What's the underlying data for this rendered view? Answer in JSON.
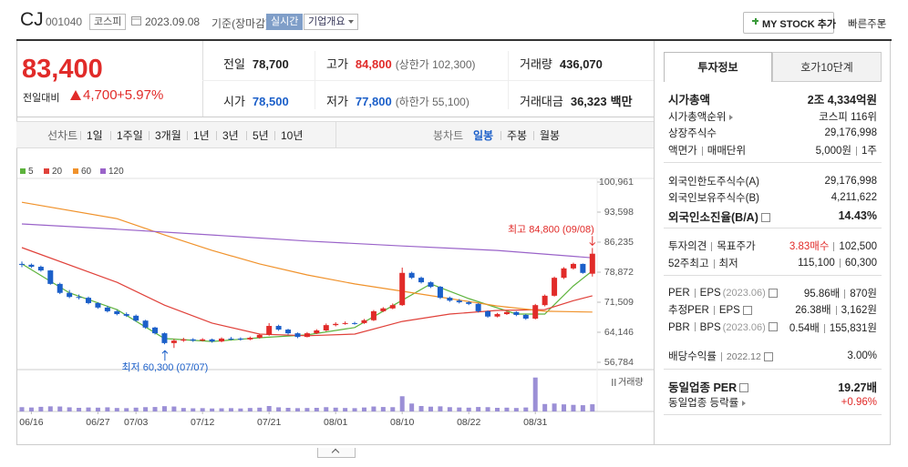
{
  "header": {
    "name": "CJ",
    "code": "001040",
    "market": "코스피",
    "date": "2023.09.08",
    "basis": "기준(장마감)",
    "realtime": "실시간",
    "overview": "기업개요",
    "mystock": "MY STOCK 추가",
    "quick": "빠른주문"
  },
  "price": {
    "current": "83,400",
    "change_label": "전일대비",
    "change": "4,700",
    "rate": "+5.97%",
    "color": "#e12b29"
  },
  "quote": [
    {
      "label": "전일",
      "value": "78,700"
    },
    {
      "label": "고가",
      "value": "84,800",
      "note": "(상한가 102,300)",
      "color": "#e12b29"
    },
    {
      "label": "거래량",
      "value": "436,070"
    },
    {
      "label": "시가",
      "value": "78,500",
      "color": "#1b5fc9"
    },
    {
      "label": "저가",
      "value": "77,800",
      "note": "(하한가 55,100)",
      "color": "#1b5fc9"
    },
    {
      "label": "거래대금",
      "value": "36,323",
      "unit": "백만"
    }
  ],
  "tabs": {
    "periods": [
      "선차트",
      "1일",
      "1주일",
      "3개월",
      "1년",
      "3년",
      "5년",
      "10년"
    ],
    "chart_types": [
      "봉차트",
      "일봉",
      "주봉",
      "월봉"
    ],
    "active_chart_type": 1
  },
  "chart": {
    "type": "candlestick",
    "up_color": "#e12b29",
    "down_color": "#1b5fc9",
    "volume_color": "#9b8fd6",
    "ma": [
      {
        "name": "5",
        "color": "#5db33c",
        "x": [
          0,
          5,
          10,
          15,
          20,
          25,
          30,
          35,
          40,
          43,
          47,
          52,
          55,
          58,
          60
        ],
        "values": [
          80900,
          73800,
          69700,
          62600,
          61900,
          62800,
          63500,
          65300,
          72000,
          76000,
          72400,
          68600,
          68600,
          75500,
          79200
        ]
      },
      {
        "name": "20",
        "color": "#e0413a",
        "x": [
          0,
          10,
          15,
          20,
          25,
          30,
          35,
          40,
          45,
          50,
          55,
          58,
          60
        ],
        "values": [
          84900,
          76400,
          70800,
          66400,
          63700,
          63300,
          63700,
          66800,
          68600,
          69500,
          69700,
          71900,
          73100
        ]
      },
      {
        "name": "60",
        "color": "#f0922b",
        "x": [
          0,
          10,
          15,
          20,
          25,
          30,
          35,
          40,
          45,
          50,
          55,
          60
        ],
        "values": [
          96000,
          92000,
          88000,
          84200,
          80900,
          78200,
          76000,
          74200,
          72400,
          70600,
          69300,
          69100
        ]
      },
      {
        "name": "120",
        "color": "#9a63c9",
        "x": [
          0,
          10,
          20,
          30,
          40,
          50,
          60
        ],
        "values": [
          90700,
          89400,
          88000,
          86500,
          85300,
          84200,
          82400
        ]
      }
    ],
    "ylim": [
      56784,
      100961
    ],
    "yticks": [
      {
        "value": 100961,
        "label": "100,961"
      },
      {
        "value": 93598,
        "label": "93,598"
      },
      {
        "value": 86235,
        "label": "86,235"
      },
      {
        "value": 78872,
        "label": "78,872"
      },
      {
        "value": 71509,
        "label": "71,509"
      },
      {
        "value": 64146,
        "label": "64,146"
      },
      {
        "value": 56784,
        "label": "56,784"
      }
    ],
    "categories": [
      null,
      "06/16",
      null,
      null,
      null,
      null,
      null,
      null,
      "06/27",
      null,
      null,
      null,
      "07/03",
      null,
      null,
      null,
      null,
      null,
      null,
      "07/12",
      null,
      null,
      null,
      null,
      null,
      null,
      "07/21",
      null,
      null,
      null,
      null,
      null,
      null,
      "08/01",
      null,
      null,
      null,
      null,
      null,
      null,
      "08/10",
      null,
      null,
      null,
      null,
      null,
      null,
      "08/22",
      null,
      null,
      null,
      null,
      null,
      null,
      "08/31",
      null,
      null,
      null,
      null,
      null,
      null
    ],
    "candles": [
      [
        80900,
        81500,
        80100,
        80700
      ],
      [
        80700,
        81000,
        79900,
        80200
      ],
      [
        80200,
        80500,
        79000,
        79300
      ],
      [
        79300,
        79400,
        75800,
        76000
      ],
      [
        76000,
        76300,
        73500,
        73800
      ],
      [
        73800,
        74500,
        72500,
        72800
      ],
      [
        72800,
        73400,
        72200,
        72600
      ],
      [
        72600,
        72900,
        71000,
        71300
      ],
      [
        71300,
        71500,
        69900,
        70200
      ],
      [
        70200,
        70600,
        69000,
        69300
      ],
      [
        69300,
        69600,
        68300,
        68600
      ],
      [
        68600,
        69000,
        67900,
        68200
      ],
      [
        68200,
        68500,
        66700,
        67000
      ],
      [
        67000,
        67200,
        65000,
        65300
      ],
      [
        65300,
        65500,
        63600,
        63900
      ],
      [
        63900,
        64100,
        61200,
        61500
      ],
      [
        61500,
        62500,
        60300,
        62100
      ],
      [
        62100,
        62800,
        61800,
        62400
      ],
      [
        62400,
        62700,
        61800,
        62100
      ],
      [
        62100,
        62700,
        61900,
        62400
      ],
      [
        62400,
        62600,
        61600,
        61900
      ],
      [
        61900,
        62900,
        61700,
        62600
      ],
      [
        62600,
        63000,
        62200,
        62600
      ],
      [
        62600,
        62900,
        62100,
        62400
      ],
      [
        62400,
        63100,
        62200,
        62800
      ],
      [
        62800,
        63800,
        62600,
        63500
      ],
      [
        63500,
        66400,
        63300,
        65700
      ],
      [
        65700,
        66000,
        64500,
        64800
      ],
      [
        64800,
        65000,
        63600,
        63900
      ],
      [
        63900,
        64100,
        62700,
        63000
      ],
      [
        63000,
        64200,
        62900,
        63900
      ],
      [
        63900,
        64900,
        63700,
        64600
      ],
      [
        64600,
        66300,
        64400,
        65900
      ],
      [
        65900,
        66600,
        65600,
        66200
      ],
      [
        66200,
        66800,
        66000,
        66400
      ],
      [
        66400,
        66700,
        66000,
        66400
      ],
      [
        66400,
        67400,
        66200,
        67100
      ],
      [
        67100,
        69600,
        66900,
        69300
      ],
      [
        69300,
        70300,
        69100,
        70000
      ],
      [
        70000,
        71200,
        69800,
        70800
      ],
      [
        70800,
        80000,
        70600,
        78700
      ],
      [
        78700,
        79000,
        77200,
        77500
      ],
      [
        77500,
        77800,
        76100,
        76400
      ],
      [
        76400,
        76600,
        75000,
        75300
      ],
      [
        75300,
        75500,
        72300,
        72600
      ],
      [
        72600,
        72900,
        71600,
        71900
      ],
      [
        71900,
        72300,
        71200,
        71500
      ],
      [
        71500,
        71800,
        70800,
        71100
      ],
      [
        71100,
        71300,
        69000,
        69300
      ],
      [
        69300,
        69500,
        67700,
        68000
      ],
      [
        68000,
        68900,
        67800,
        68600
      ],
      [
        68600,
        69300,
        68400,
        69100
      ],
      [
        69100,
        69300,
        68100,
        68400
      ],
      [
        68400,
        68600,
        67200,
        67500
      ],
      [
        67500,
        71100,
        67300,
        70800
      ],
      [
        70800,
        73400,
        70500,
        73100
      ],
      [
        73100,
        77800,
        72900,
        77500
      ],
      [
        77500,
        80100,
        77200,
        79800
      ],
      [
        79800,
        81200,
        79500,
        80900
      ],
      [
        80900,
        81000,
        78500,
        78700
      ],
      [
        78500,
        84800,
        77800,
        83400
      ]
    ],
    "volumes": [
      260000,
      240000,
      280000,
      310000,
      300000,
      250000,
      220000,
      240000,
      230000,
      250000,
      210000,
      200000,
      230000,
      260000,
      270000,
      320000,
      300000,
      210000,
      190000,
      200000,
      180000,
      190000,
      200000,
      180000,
      210000,
      230000,
      330000,
      250000,
      220000,
      200000,
      210000,
      220000,
      260000,
      230000,
      210000,
      200000,
      240000,
      300000,
      270000,
      260000,
      920000,
      480000,
      330000,
      290000,
      310000,
      260000,
      240000,
      230000,
      270000,
      260000,
      220000,
      230000,
      210000,
      240000,
      2050000,
      450000,
      480000,
      430000,
      400000,
      380000,
      436070
    ],
    "vlim": [
      0,
      2200000
    ],
    "volume_label": "거래량",
    "high_label": "최고 84,800 (09/08)",
    "low_label": "최저 60,300 (07/07)"
  },
  "side": {
    "tabs": [
      "투자정보",
      "호가10단계"
    ],
    "sections": [
      [
        {
          "label": "시가총액",
          "value": "2조 4,334억원",
          "bold": true
        },
        {
          "label": "시가총액순위",
          "arrow": true,
          "value": "코스피 116위"
        },
        {
          "label": "상장주식수",
          "value": "29,176,998"
        },
        {
          "label": "액면가",
          "label2": "매매단위",
          "value": "5,000원",
          "value2": "1주"
        }
      ],
      [
        {
          "label": "외국인한도주식수(A)",
          "value": "29,176,998"
        },
        {
          "label": "외국인보유주식수(B)",
          "value": "4,211,622"
        },
        {
          "label": "외국인소진율(B/A)",
          "help": true,
          "value": "14.43%",
          "bold": true
        }
      ],
      [
        {
          "label": "투자의견",
          "label2": "목표주가",
          "value": "3.83매수",
          "value_color": "#e12b29",
          "value2": "102,500"
        },
        {
          "label": "52주최고",
          "label2": "최저",
          "value": "115,100",
          "value2": "60,300"
        }
      ],
      [
        {
          "label": "PER",
          "label2": "EPS",
          "note": "(2023.06)",
          "help": true,
          "value": "95.86배",
          "value2": "870원"
        },
        {
          "label": "추정PER",
          "label2": "EPS",
          "help": true,
          "value": "26.38배",
          "value2": "3,162원"
        },
        {
          "label": "PBR",
          "label2": "BPS",
          "note": "(2023.06)",
          "help": true,
          "value": "0.54배",
          "value2": "155,831원"
        },
        {
          "label": "배당수익률",
          "label2": "2022.12",
          "help": true,
          "value": "3.00%"
        }
      ],
      [
        {
          "label": "동일업종 PER",
          "help": true,
          "value": "19.27배",
          "bold": true
        },
        {
          "label": "동일업종 등락률",
          "arrow": true,
          "value": "+0.96%",
          "value_color": "#e12b29"
        }
      ]
    ]
  }
}
